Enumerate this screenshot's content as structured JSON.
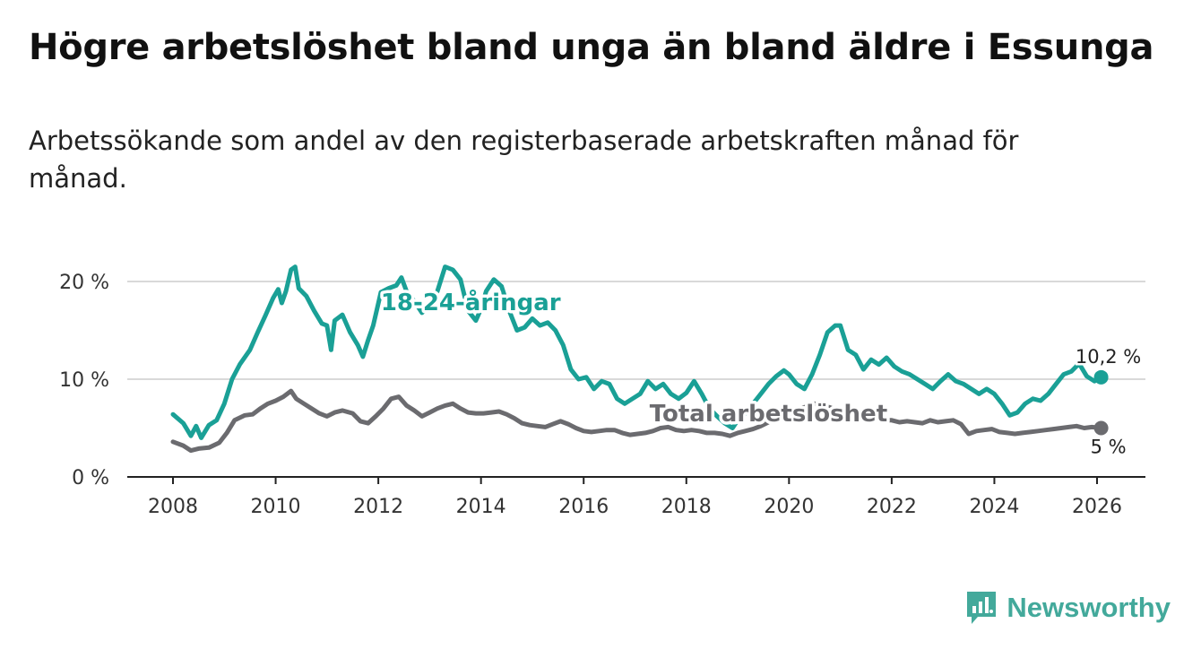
{
  "title": "Högre arbetslöshet bland unga än bland äldre i Essunga",
  "subtitle": "Arbetssökande som andel av den registerbaserade arbetskraften månad för månad.",
  "brand": {
    "name": "Newsworthy",
    "icon": "newsworthy-logo-icon",
    "color": "#43a99b"
  },
  "chart_data": {
    "type": "line",
    "title": "Högre arbetslöshet bland unga än bland äldre i Essunga",
    "xlabel": "",
    "ylabel": "",
    "xlim": [
      2007.75,
      2027.0
    ],
    "ylim": [
      0,
      22
    ],
    "y_ticks": [
      0,
      10,
      20
    ],
    "y_tick_labels": [
      "0 %",
      "10 %",
      "20 %"
    ],
    "x_ticks": [
      "2008",
      "2010",
      "2012",
      "2014",
      "2016",
      "2018",
      "2020",
      "2022",
      "2024",
      "2026"
    ],
    "grid": "horizontal",
    "series": [
      {
        "name": "18-24-åringar",
        "label": "18-24-åringar",
        "color": "#1aa096",
        "end_label": "10,2 %",
        "points": [
          [
            2008.0,
            6.4
          ],
          [
            2008.2,
            5.5
          ],
          [
            2008.35,
            4.2
          ],
          [
            2008.45,
            5.2
          ],
          [
            2008.55,
            4.0
          ],
          [
            2008.7,
            5.3
          ],
          [
            2008.85,
            5.8
          ],
          [
            2009.0,
            7.5
          ],
          [
            2009.15,
            10.0
          ],
          [
            2009.3,
            11.5
          ],
          [
            2009.5,
            13.0
          ],
          [
            2009.65,
            14.8
          ],
          [
            2009.8,
            16.5
          ],
          [
            2009.95,
            18.3
          ],
          [
            2010.05,
            19.2
          ],
          [
            2010.12,
            17.8
          ],
          [
            2010.2,
            19.0
          ],
          [
            2010.3,
            21.2
          ],
          [
            2010.38,
            21.5
          ],
          [
            2010.45,
            19.3
          ],
          [
            2010.6,
            18.5
          ],
          [
            2010.75,
            17.0
          ],
          [
            2010.9,
            15.7
          ],
          [
            2011.0,
            15.5
          ],
          [
            2011.08,
            13.0
          ],
          [
            2011.15,
            16.0
          ],
          [
            2011.3,
            16.6
          ],
          [
            2011.45,
            14.8
          ],
          [
            2011.6,
            13.5
          ],
          [
            2011.7,
            12.3
          ],
          [
            2011.8,
            14.0
          ],
          [
            2011.9,
            15.5
          ],
          [
            2012.05,
            18.9
          ],
          [
            2012.2,
            19.3
          ],
          [
            2012.35,
            19.6
          ],
          [
            2012.45,
            20.4
          ],
          [
            2012.55,
            19.0
          ],
          [
            2012.7,
            18.0
          ],
          [
            2012.85,
            16.8
          ],
          [
            2013.0,
            17.5
          ],
          [
            2013.15,
            19.0
          ],
          [
            2013.3,
            21.5
          ],
          [
            2013.45,
            21.2
          ],
          [
            2013.6,
            20.2
          ],
          [
            2013.75,
            17.0
          ],
          [
            2013.9,
            16.0
          ],
          [
            2014.0,
            17.2
          ],
          [
            2014.1,
            19.0
          ],
          [
            2014.25,
            20.2
          ],
          [
            2014.4,
            19.5
          ],
          [
            2014.55,
            17.0
          ],
          [
            2014.7,
            15.0
          ],
          [
            2014.85,
            15.3
          ],
          [
            2015.0,
            16.2
          ],
          [
            2015.15,
            15.5
          ],
          [
            2015.3,
            15.8
          ],
          [
            2015.45,
            15.0
          ],
          [
            2015.6,
            13.5
          ],
          [
            2015.75,
            11.0
          ],
          [
            2015.9,
            10.0
          ],
          [
            2016.05,
            10.2
          ],
          [
            2016.2,
            9.0
          ],
          [
            2016.35,
            9.8
          ],
          [
            2016.5,
            9.5
          ],
          [
            2016.65,
            8.0
          ],
          [
            2016.8,
            7.5
          ],
          [
            2016.95,
            8.0
          ],
          [
            2017.1,
            8.5
          ],
          [
            2017.25,
            9.8
          ],
          [
            2017.4,
            9.0
          ],
          [
            2017.55,
            9.5
          ],
          [
            2017.7,
            8.5
          ],
          [
            2017.85,
            8.0
          ],
          [
            2018.0,
            8.6
          ],
          [
            2018.15,
            9.8
          ],
          [
            2018.3,
            8.5
          ],
          [
            2018.45,
            7.0
          ],
          [
            2018.6,
            6.2
          ],
          [
            2018.75,
            5.5
          ],
          [
            2018.9,
            5.0
          ],
          [
            2019.0,
            5.8
          ],
          [
            2019.15,
            6.5
          ],
          [
            2019.3,
            7.5
          ],
          [
            2019.45,
            8.5
          ],
          [
            2019.6,
            9.5
          ],
          [
            2019.75,
            10.3
          ],
          [
            2019.9,
            10.9
          ],
          [
            2020.0,
            10.5
          ],
          [
            2020.15,
            9.5
          ],
          [
            2020.3,
            9.0
          ],
          [
            2020.45,
            10.5
          ],
          [
            2020.6,
            12.5
          ],
          [
            2020.75,
            14.8
          ],
          [
            2020.9,
            15.5
          ],
          [
            2021.0,
            15.5
          ],
          [
            2021.15,
            13.0
          ],
          [
            2021.3,
            12.5
          ],
          [
            2021.45,
            11.0
          ],
          [
            2021.6,
            12.0
          ],
          [
            2021.75,
            11.5
          ],
          [
            2021.9,
            12.2
          ],
          [
            2022.05,
            11.3
          ],
          [
            2022.2,
            10.8
          ],
          [
            2022.35,
            10.5
          ],
          [
            2022.5,
            10.0
          ],
          [
            2022.65,
            9.5
          ],
          [
            2022.8,
            9.0
          ],
          [
            2022.95,
            9.8
          ],
          [
            2023.1,
            10.5
          ],
          [
            2023.25,
            9.8
          ],
          [
            2023.4,
            9.5
          ],
          [
            2023.55,
            9.0
          ],
          [
            2023.7,
            8.5
          ],
          [
            2023.85,
            9.0
          ],
          [
            2024.0,
            8.5
          ],
          [
            2024.15,
            7.5
          ],
          [
            2024.3,
            6.3
          ],
          [
            2024.45,
            6.6
          ],
          [
            2024.6,
            7.5
          ],
          [
            2024.75,
            8.0
          ],
          [
            2024.9,
            7.8
          ],
          [
            2025.05,
            8.5
          ],
          [
            2025.2,
            9.5
          ],
          [
            2025.35,
            10.5
          ],
          [
            2025.5,
            10.8
          ],
          [
            2025.65,
            11.6
          ],
          [
            2025.8,
            10.3
          ],
          [
            2025.95,
            9.8
          ],
          [
            2026.08,
            10.2
          ]
        ]
      },
      {
        "name": "Total arbetslöshet",
        "label": "Total arbetslöshet",
        "color": "#6b6b6f",
        "end_label": "5 %",
        "points": [
          [
            2008.0,
            3.6
          ],
          [
            2008.2,
            3.2
          ],
          [
            2008.35,
            2.7
          ],
          [
            2008.5,
            2.9
          ],
          [
            2008.7,
            3.0
          ],
          [
            2008.9,
            3.5
          ],
          [
            2009.05,
            4.5
          ],
          [
            2009.2,
            5.8
          ],
          [
            2009.4,
            6.3
          ],
          [
            2009.55,
            6.4
          ],
          [
            2009.7,
            7.0
          ],
          [
            2009.85,
            7.5
          ],
          [
            2010.0,
            7.8
          ],
          [
            2010.15,
            8.2
          ],
          [
            2010.3,
            8.8
          ],
          [
            2010.4,
            8.0
          ],
          [
            2010.55,
            7.5
          ],
          [
            2010.7,
            7.0
          ],
          [
            2010.85,
            6.5
          ],
          [
            2011.0,
            6.2
          ],
          [
            2011.15,
            6.6
          ],
          [
            2011.3,
            6.8
          ],
          [
            2011.5,
            6.5
          ],
          [
            2011.65,
            5.7
          ],
          [
            2011.8,
            5.5
          ],
          [
            2011.95,
            6.2
          ],
          [
            2012.1,
            7.0
          ],
          [
            2012.25,
            8.0
          ],
          [
            2012.4,
            8.2
          ],
          [
            2012.55,
            7.3
          ],
          [
            2012.7,
            6.8
          ],
          [
            2012.85,
            6.2
          ],
          [
            2013.0,
            6.6
          ],
          [
            2013.15,
            7.0
          ],
          [
            2013.3,
            7.3
          ],
          [
            2013.45,
            7.5
          ],
          [
            2013.6,
            7.0
          ],
          [
            2013.75,
            6.6
          ],
          [
            2013.9,
            6.5
          ],
          [
            2014.05,
            6.5
          ],
          [
            2014.2,
            6.6
          ],
          [
            2014.35,
            6.7
          ],
          [
            2014.5,
            6.4
          ],
          [
            2014.65,
            6.0
          ],
          [
            2014.8,
            5.5
          ],
          [
            2014.95,
            5.3
          ],
          [
            2015.1,
            5.2
          ],
          [
            2015.25,
            5.1
          ],
          [
            2015.4,
            5.4
          ],
          [
            2015.55,
            5.7
          ],
          [
            2015.7,
            5.4
          ],
          [
            2015.85,
            5.0
          ],
          [
            2016.0,
            4.7
          ],
          [
            2016.15,
            4.6
          ],
          [
            2016.3,
            4.7
          ],
          [
            2016.45,
            4.8
          ],
          [
            2016.6,
            4.8
          ],
          [
            2016.75,
            4.5
          ],
          [
            2016.9,
            4.3
          ],
          [
            2017.05,
            4.4
          ],
          [
            2017.2,
            4.5
          ],
          [
            2017.35,
            4.7
          ],
          [
            2017.5,
            5.0
          ],
          [
            2017.65,
            5.1
          ],
          [
            2017.8,
            4.8
          ],
          [
            2017.95,
            4.7
          ],
          [
            2018.1,
            4.8
          ],
          [
            2018.25,
            4.7
          ],
          [
            2018.4,
            4.5
          ],
          [
            2018.55,
            4.5
          ],
          [
            2018.7,
            4.4
          ],
          [
            2018.85,
            4.2
          ],
          [
            2019.0,
            4.5
          ],
          [
            2019.15,
            4.7
          ],
          [
            2019.3,
            4.9
          ],
          [
            2019.45,
            5.2
          ],
          [
            2019.6,
            5.6
          ],
          [
            2019.75,
            5.8
          ],
          [
            2019.9,
            6.0
          ],
          [
            2020.05,
            6.5
          ],
          [
            2020.2,
            7.0
          ],
          [
            2020.35,
            7.2
          ],
          [
            2020.5,
            7.5
          ],
          [
            2020.65,
            7.3
          ],
          [
            2020.8,
            7.1
          ],
          [
            2020.95,
            6.8
          ],
          [
            2021.1,
            6.5
          ],
          [
            2021.25,
            6.3
          ],
          [
            2021.4,
            6.2
          ],
          [
            2021.55,
            6.0
          ],
          [
            2021.7,
            5.9
          ],
          [
            2021.85,
            5.8
          ],
          [
            2022.0,
            5.8
          ],
          [
            2022.15,
            5.6
          ],
          [
            2022.3,
            5.7
          ],
          [
            2022.45,
            5.6
          ],
          [
            2022.6,
            5.5
          ],
          [
            2022.75,
            5.8
          ],
          [
            2022.9,
            5.6
          ],
          [
            2023.05,
            5.7
          ],
          [
            2023.2,
            5.8
          ],
          [
            2023.35,
            5.4
          ],
          [
            2023.5,
            4.4
          ],
          [
            2023.65,
            4.7
          ],
          [
            2023.8,
            4.8
          ],
          [
            2023.95,
            4.9
          ],
          [
            2024.1,
            4.6
          ],
          [
            2024.25,
            4.5
          ],
          [
            2024.4,
            4.4
          ],
          [
            2024.55,
            4.5
          ],
          [
            2024.7,
            4.6
          ],
          [
            2024.85,
            4.7
          ],
          [
            2025.0,
            4.8
          ],
          [
            2025.15,
            4.9
          ],
          [
            2025.3,
            5.0
          ],
          [
            2025.45,
            5.1
          ],
          [
            2025.6,
            5.2
          ],
          [
            2025.75,
            5.0
          ],
          [
            2025.9,
            5.1
          ],
          [
            2026.08,
            5.0
          ]
        ]
      }
    ]
  }
}
